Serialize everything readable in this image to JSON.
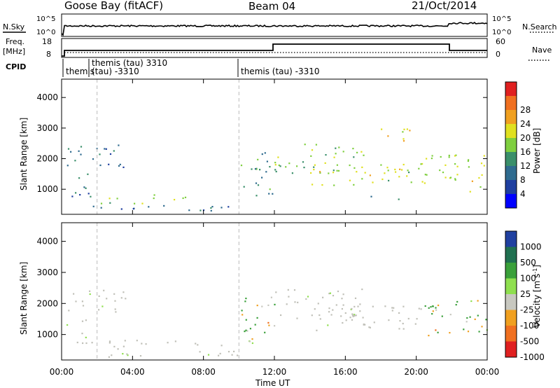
{
  "header": {
    "station": "Goose Bay (fitACF)",
    "beam": "Beam 04",
    "date": "21/Oct/2014"
  },
  "sky_panel": {
    "left_label": "N.Sky",
    "right_label": "N.Search",
    "tick_top": "10^5",
    "tick_bottom": "10^0",
    "right_tick_top": "10^5",
    "right_tick_bottom": "10^0"
  },
  "freq_panel": {
    "left_label_line1": "Freq.",
    "left_label_line2": "[MHz]",
    "left_tick_top": "18",
    "left_tick_bottom": "8",
    "right_tick_top": "60",
    "right_tick_bottom": "0",
    "right_label": "Nave"
  },
  "cpid": {
    "label": "CPID",
    "entries": [
      {
        "name": "themis",
        "start_ut": "00:00"
      },
      {
        "name": "themis (tau) 3310",
        "start_ut": "02:00",
        "line2": "(tau) -3310"
      },
      {
        "name": "themis (tau) -3310",
        "start_ut": "10:00"
      }
    ]
  },
  "colors": {
    "power_scale": [
      "#0000ff",
      "#1f3fa0",
      "#2f6b8f",
      "#3a8f6a",
      "#7fcf3f",
      "#e0e020",
      "#f0a020",
      "#f07020",
      "#e02020"
    ],
    "velocity_scale": [
      "#2040a0",
      "#207050",
      "#3aa03a",
      "#8fdf4f",
      "#c8c8c0",
      "#f0a020",
      "#f07020",
      "#e02020"
    ],
    "ground_scatter": "#c0c0b8"
  },
  "chart_data": [
    {
      "type": "heatmap",
      "panel": "power",
      "title": "",
      "xlabel": "Time UT",
      "ylabel": "Slant Range [km]",
      "x_ticks": [
        "00:00",
        "04:00",
        "08:00",
        "12:00",
        "16:00",
        "20:00",
        "00:00"
      ],
      "y_ticks": [
        1000,
        2000,
        3000,
        4000
      ],
      "ylim": [
        180,
        4600
      ],
      "colorbar": {
        "label": "Power [dB]",
        "ticks": [
          4,
          8,
          12,
          16,
          20,
          24,
          28
        ]
      },
      "regions": [
        {
          "t0": 0.3,
          "t1": 3.6,
          "r0": 1650,
          "r1": 2450,
          "value": 10
        },
        {
          "t0": 0.2,
          "t1": 1.8,
          "r0": 700,
          "r1": 1500,
          "value": 10
        },
        {
          "t0": 0.1,
          "t1": 10.3,
          "r0": 230,
          "r1": 450,
          "value": 8
        },
        {
          "t0": 2.0,
          "t1": 7.5,
          "r0": 480,
          "r1": 800,
          "value": 16
        },
        {
          "t0": 10.0,
          "t1": 12.2,
          "r0": 700,
          "r1": 2200,
          "value": 12
        },
        {
          "t0": 12.0,
          "t1": 17.0,
          "r0": 1500,
          "r1": 2450,
          "value": 16
        },
        {
          "t0": 14.0,
          "t1": 20.5,
          "r0": 1100,
          "r1": 1900,
          "value": 18
        },
        {
          "t0": 18.0,
          "t1": 19.7,
          "r0": 2500,
          "r1": 3100,
          "value": 20
        },
        {
          "t0": 17.0,
          "t1": 19.0,
          "r0": 500,
          "r1": 750,
          "value": 12
        },
        {
          "t0": 20.3,
          "t1": 24.0,
          "r0": 900,
          "r1": 2100,
          "value": 18
        }
      ]
    },
    {
      "type": "heatmap",
      "panel": "velocity",
      "title": "",
      "xlabel": "Time UT",
      "ylabel": "Slant Range [km]",
      "x_ticks": [
        "00:00",
        "04:00",
        "08:00",
        "12:00",
        "16:00",
        "20:00",
        "00:00"
      ],
      "y_ticks": [
        1000,
        2000,
        3000,
        4000
      ],
      "ylim": [
        180,
        4600
      ],
      "colorbar": {
        "label": "Velocity [m s^-1]",
        "ticks": [
          1000,
          500,
          100,
          25,
          -25,
          -100,
          -500,
          -1000
        ]
      },
      "regions": [
        {
          "t0": 0.3,
          "t1": 3.6,
          "r0": 1650,
          "r1": 2450,
          "value": 0
        },
        {
          "t0": 0.2,
          "t1": 1.8,
          "r0": 700,
          "r1": 1500,
          "value": 0
        },
        {
          "t0": 2.0,
          "t1": 10.3,
          "r0": 250,
          "r1": 800,
          "value": 0
        },
        {
          "t0": 10.0,
          "t1": 12.0,
          "r0": 700,
          "r1": 2200,
          "value": 60
        },
        {
          "t0": 12.0,
          "t1": 17.0,
          "r0": 1500,
          "r1": 2450,
          "value": 0
        },
        {
          "t0": 14.0,
          "t1": 20.5,
          "r0": 1100,
          "r1": 1900,
          "value": 0
        },
        {
          "t0": 18.0,
          "t1": 19.7,
          "r0": 500,
          "r1": 750,
          "value": -300
        },
        {
          "t0": 20.3,
          "t1": 24.0,
          "r0": 900,
          "r1": 2100,
          "value": 80
        }
      ]
    }
  ]
}
